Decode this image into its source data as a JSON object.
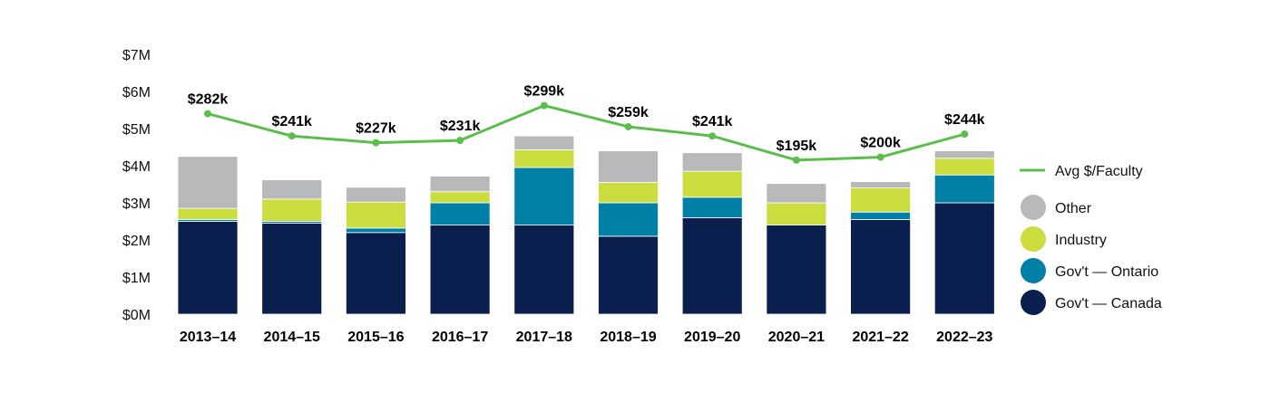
{
  "chart_data": {
    "type": "bar",
    "stacked": true,
    "categories": [
      "2013–14",
      "2014–15",
      "2015–16",
      "2016–17",
      "2017–18",
      "2018–19",
      "2019–20",
      "2020–21",
      "2021–22",
      "2022–23"
    ],
    "y_tick_labels": [
      "$0M",
      "$1M",
      "$2M",
      "$3M",
      "$4M",
      "$5M",
      "$6M",
      "$7M"
    ],
    "ylim": [
      0,
      7
    ],
    "y_unit": "M",
    "grid": false,
    "legend_position": "right",
    "series": [
      {
        "name": "Gov't — Canada",
        "color": "#0b1f4f",
        "values": [
          2.5,
          2.45,
          2.2,
          2.4,
          2.4,
          2.1,
          2.6,
          2.4,
          2.55,
          3.0
        ]
      },
      {
        "name": "Gov't — Ontario",
        "color": "#0080a6",
        "values": [
          0.05,
          0.05,
          0.12,
          0.6,
          1.55,
          0.9,
          0.55,
          0.0,
          0.2,
          0.75
        ]
      },
      {
        "name": "Industry",
        "color": "#cbdd3f",
        "values": [
          0.3,
          0.6,
          0.7,
          0.3,
          0.48,
          0.55,
          0.7,
          0.6,
          0.65,
          0.45
        ]
      },
      {
        "name": "Other",
        "color": "#b8b9bb",
        "values": [
          1.4,
          0.52,
          0.4,
          0.42,
          0.37,
          0.85,
          0.5,
          0.52,
          0.17,
          0.2
        ]
      }
    ],
    "line_series": {
      "name": "Avg $/Faculty",
      "color": "#5bbd4b",
      "axis_values_M": [
        5.4,
        4.8,
        4.62,
        4.68,
        5.62,
        5.05,
        4.8,
        4.15,
        4.23,
        4.85
      ],
      "labels": [
        "$282k",
        "$241k",
        "$227k",
        "$231k",
        "$299k",
        "$259k",
        "$241k",
        "$195k",
        "$200k",
        "$244k"
      ]
    },
    "legend": [
      "Avg $/Faculty",
      "Other",
      "Industry",
      "Gov't — Ontario",
      "Gov't — Canada"
    ]
  }
}
